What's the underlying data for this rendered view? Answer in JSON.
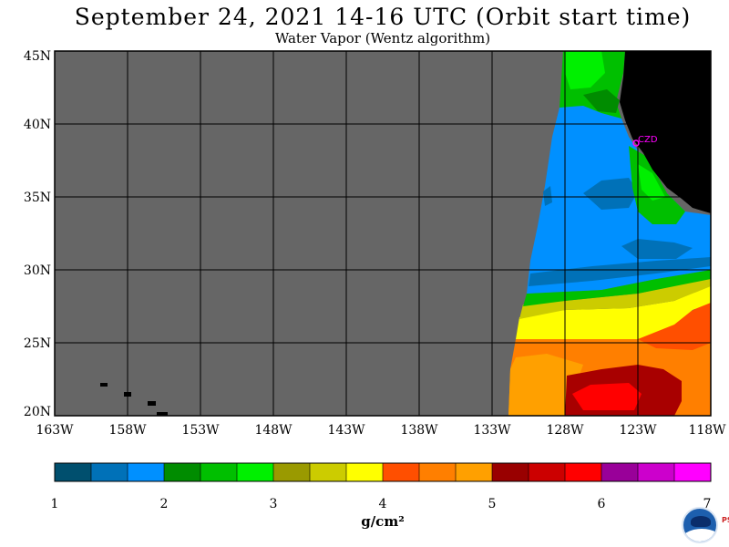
{
  "header": {
    "title": "September 24, 2021  14-16 UTC  (Orbit start time)",
    "subtitle": "Water Vapor (Wentz algorithm)"
  },
  "map": {
    "lat_labels": [
      "45N",
      "40N",
      "35N",
      "30N",
      "25N",
      "20N"
    ],
    "lon_labels": [
      "163W",
      "158W",
      "153W",
      "148W",
      "143W",
      "138W",
      "133W",
      "128W",
      "123W",
      "118W"
    ],
    "station_label": "CZD",
    "colors": {
      "no_data": "#666666",
      "land": "#000000",
      "grid": "#000000",
      "station": "#ff00ff"
    }
  },
  "colorbar": {
    "tick_labels": [
      "1",
      "2",
      "3",
      "4",
      "5",
      "6",
      "7"
    ],
    "units": "g/cm²",
    "colors": [
      "#004f6e",
      "#0071b8",
      "#0090ff",
      "#008c00",
      "#00bf00",
      "#00f000",
      "#9a9a00",
      "#cccc00",
      "#ffff00",
      "#ff4f00",
      "#ff7f00",
      "#ffa000",
      "#990000",
      "#cc0000",
      "#ff0000",
      "#990099",
      "#cc00cc",
      "#ff00ff"
    ]
  },
  "branding": {
    "logo_name": "noaa-logo",
    "side_text": "PSL"
  }
}
